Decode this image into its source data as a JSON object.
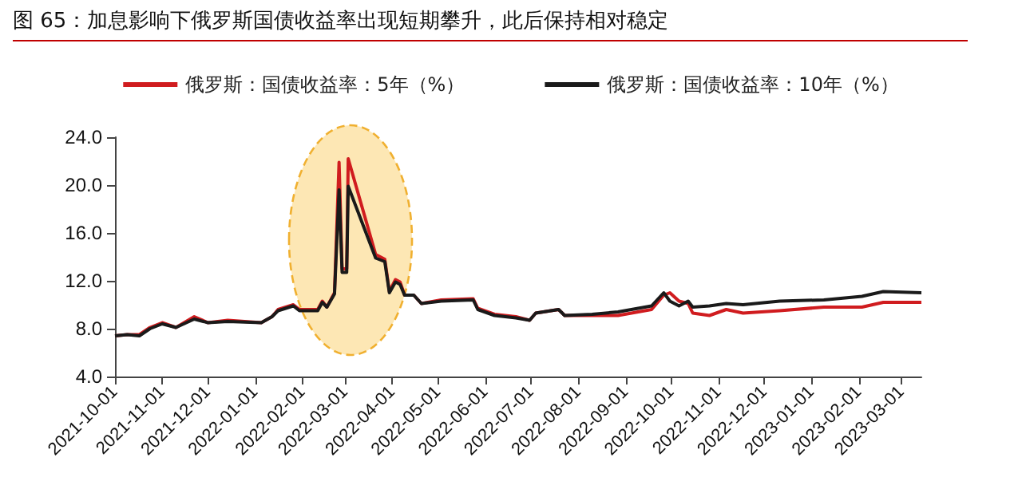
{
  "chart_data": {
    "type": "line",
    "title": "图 65：加息影响下俄罗斯国债收益率出现短期攀升，此后保持相对稳定",
    "x": [
      "2021-10-01",
      "2021-10-09",
      "2021-10-17",
      "2021-10-24",
      "2021-11-01",
      "2021-11-10",
      "2021-11-22",
      "2021-12-01",
      "2021-12-14",
      "2022-01-05",
      "2022-01-12",
      "2022-01-16",
      "2022-01-26",
      "2022-01-30",
      "2022-02-11",
      "2022-02-14",
      "2022-02-17",
      "2022-02-22",
      "2022-02-25",
      "2022-02-27",
      "2022-03-02",
      "2022-03-03",
      "2022-03-21",
      "2022-03-27",
      "2022-03-30",
      "2022-04-03",
      "2022-04-06",
      "2022-04-09",
      "2022-04-15",
      "2022-04-20",
      "2022-05-03",
      "2022-05-24",
      "2022-05-27",
      "2022-06-07",
      "2022-06-21",
      "2022-06-30",
      "2022-07-04",
      "2022-07-19",
      "2022-07-23",
      "2022-08-10",
      "2022-08-27",
      "2022-09-18",
      "2022-09-26",
      "2022-09-30",
      "2022-10-06",
      "2022-10-12",
      "2022-10-15",
      "2022-10-26",
      "2022-11-06",
      "2022-11-17",
      "2022-12-11",
      "2023-01-09",
      "2023-02-03",
      "2023-02-17",
      "2023-03-14"
    ],
    "series": [
      {
        "name": "俄罗斯：国债收益率：5年（%）",
        "color": "#d01c1f",
        "values": [
          7.4,
          7.5,
          7.5,
          8.1,
          8.5,
          8.1,
          9.0,
          8.5,
          8.7,
          8.5,
          9.0,
          9.6,
          10.0,
          9.6,
          9.6,
          10.3,
          9.8,
          11.0,
          21.9,
          13.0,
          13.0,
          22.2,
          14.2,
          13.8,
          11.1,
          12.1,
          11.9,
          10.8,
          10.8,
          10.1,
          10.4,
          10.5,
          9.7,
          9.2,
          9.0,
          8.7,
          9.3,
          9.6,
          9.1,
          9.1,
          9.1,
          9.6,
          10.8,
          11.0,
          10.3,
          10.1,
          9.3,
          9.1,
          9.6,
          9.3,
          9.5,
          9.8,
          9.8,
          10.2,
          10.2
        ]
      },
      {
        "name": "俄罗斯：国债收益率：10年（%）",
        "color": "#1a1a1a",
        "values": [
          7.4,
          7.5,
          7.4,
          8.0,
          8.4,
          8.1,
          8.8,
          8.5,
          8.6,
          8.5,
          9.0,
          9.5,
          9.9,
          9.5,
          9.5,
          10.2,
          9.8,
          10.9,
          19.6,
          12.7,
          12.7,
          19.9,
          13.9,
          13.6,
          11.0,
          11.9,
          11.7,
          10.8,
          10.8,
          10.1,
          10.3,
          10.4,
          9.6,
          9.1,
          8.9,
          8.7,
          9.3,
          9.6,
          9.1,
          9.2,
          9.4,
          9.9,
          11.0,
          10.3,
          9.9,
          10.3,
          9.8,
          9.9,
          10.1,
          10.0,
          10.3,
          10.4,
          10.7,
          11.1,
          11.0
        ]
      }
    ],
    "xlim": [
      "2021-10-01",
      "2023-03-14"
    ],
    "xticks": [
      "2021-10-01",
      "2021-11-01",
      "2021-12-01",
      "2022-01-01",
      "2022-02-01",
      "2022-03-01",
      "2022-04-01",
      "2022-05-01",
      "2022-06-01",
      "2022-07-01",
      "2022-08-01",
      "2022-09-01",
      "2022-10-01",
      "2022-11-01",
      "2022-12-01",
      "2023-01-01",
      "2023-02-01",
      "2023-03-01"
    ],
    "ylim": [
      4,
      24
    ],
    "yticks": [
      {
        "value": 4,
        "label": "4.0"
      },
      {
        "value": 8,
        "label": "8.0"
      },
      {
        "value": 12,
        "label": "12.0"
      },
      {
        "value": 16,
        "label": "16.0"
      },
      {
        "value": 20,
        "label": "20.0"
      },
      {
        "value": 24,
        "label": "24.0"
      }
    ],
    "legend": "top",
    "grid": false,
    "marker": "none",
    "line_style": "solid"
  }
}
